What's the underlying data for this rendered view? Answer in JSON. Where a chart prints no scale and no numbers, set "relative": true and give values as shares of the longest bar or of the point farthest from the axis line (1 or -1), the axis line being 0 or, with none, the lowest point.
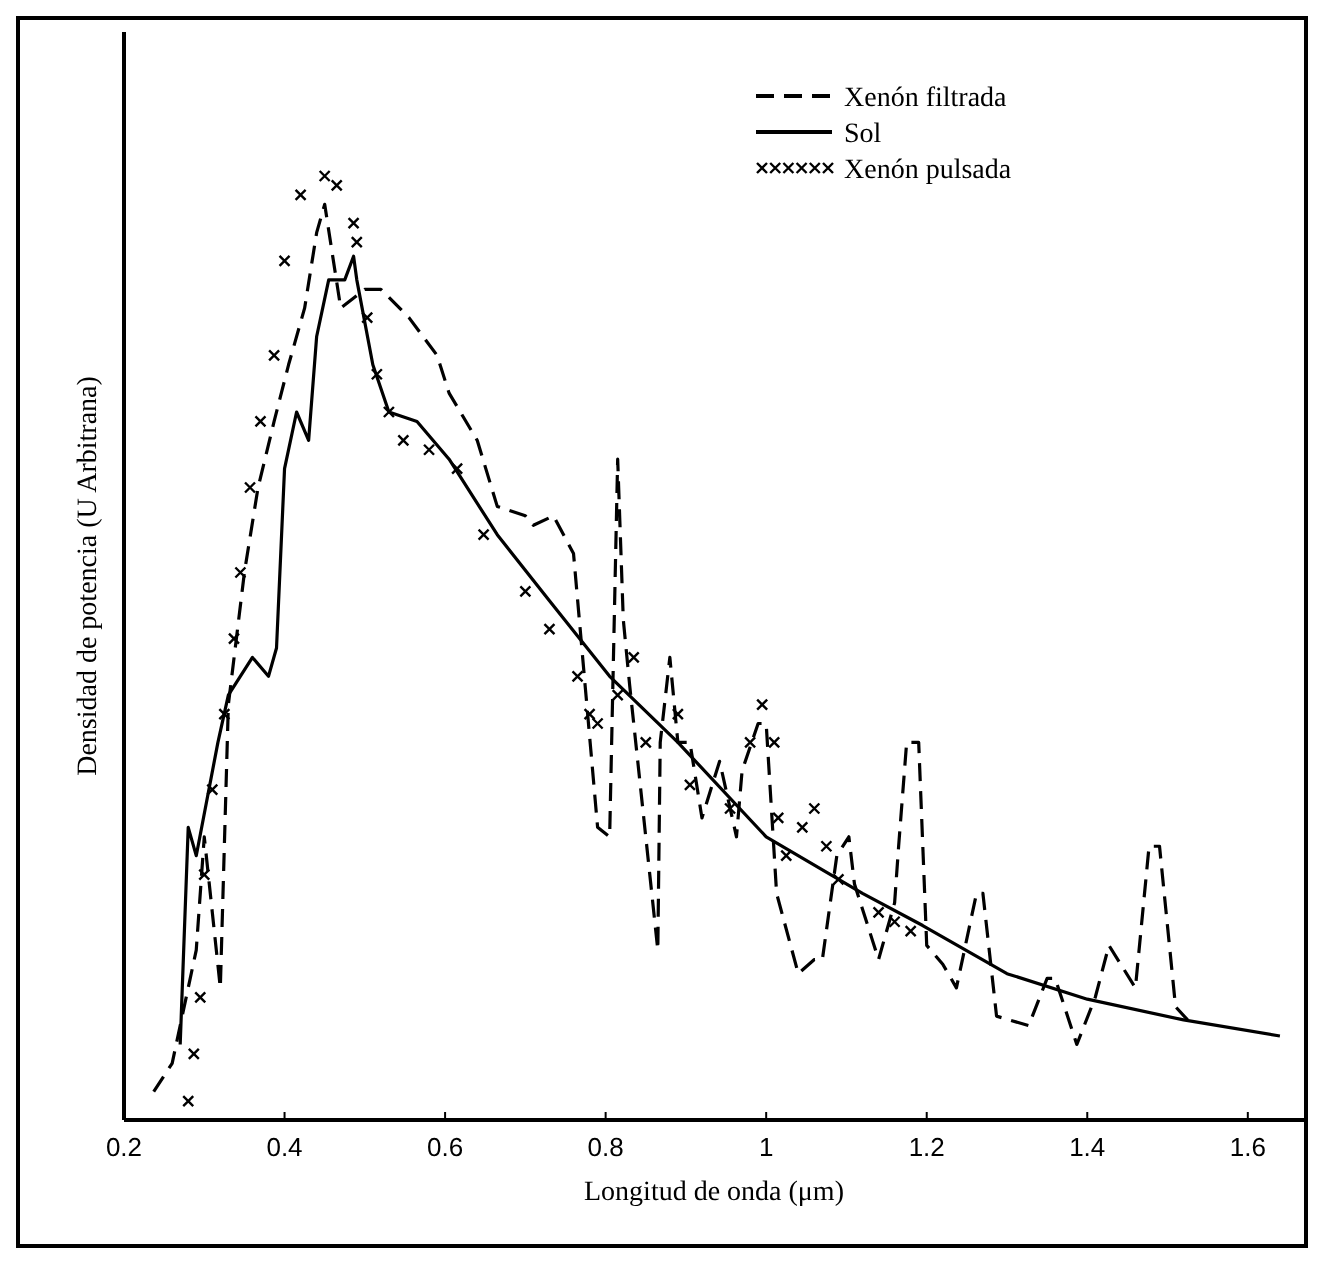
{
  "chart_data": {
    "type": "line",
    "relative": true,
    "xlabel": "Longitud de onda (μm)",
    "ylabel": "Densidad de potencia (U Arbitrana)",
    "xlim": [
      0.2,
      1.67
    ],
    "xticks": [
      0.2,
      0.4,
      0.6,
      0.8,
      1,
      1.2,
      1.4,
      1.6
    ],
    "legend": "top right",
    "grid": false,
    "series": [
      {
        "name": "Xenón filtrada",
        "color": "#000000",
        "line_style": "dashed",
        "x": [
          0.237,
          0.26,
          0.29,
          0.3,
          0.31,
          0.32,
          0.33,
          0.35,
          0.367,
          0.387,
          0.405,
          0.425,
          0.44,
          0.45,
          0.47,
          0.5,
          0.52,
          0.555,
          0.59,
          0.605,
          0.64,
          0.665,
          0.7,
          0.71,
          0.735,
          0.76,
          0.79,
          0.805,
          0.815,
          0.822,
          0.83,
          0.865,
          0.868,
          0.88,
          0.89,
          0.905,
          0.92,
          0.942,
          0.963,
          0.97,
          0.99,
          1.0,
          1.013,
          1.04,
          1.06,
          1.07,
          1.088,
          1.103,
          1.11,
          1.14,
          1.16,
          1.165,
          1.175,
          1.19,
          1.2,
          1.22,
          1.237,
          1.262,
          1.27,
          1.287,
          1.327,
          1.35,
          1.36,
          1.387,
          1.41,
          1.427,
          1.46,
          1.477,
          1.49,
          1.51,
          1.525
        ],
        "values": [
          0.03,
          0.06,
          0.18,
          0.3,
          0.22,
          0.14,
          0.44,
          0.58,
          0.67,
          0.74,
          0.8,
          0.86,
          0.94,
          0.97,
          0.86,
          0.88,
          0.88,
          0.85,
          0.81,
          0.77,
          0.72,
          0.65,
          0.64,
          0.63,
          0.64,
          0.6,
          0.31,
          0.3,
          0.7,
          0.53,
          0.46,
          0.18,
          0.4,
          0.49,
          0.4,
          0.4,
          0.32,
          0.38,
          0.3,
          0.37,
          0.42,
          0.42,
          0.24,
          0.155,
          0.17,
          0.17,
          0.28,
          0.3,
          0.25,
          0.17,
          0.23,
          0.29,
          0.4,
          0.4,
          0.185,
          0.165,
          0.14,
          0.24,
          0.24,
          0.11,
          0.1,
          0.15,
          0.15,
          0.08,
          0.13,
          0.185,
          0.14,
          0.29,
          0.29,
          0.12,
          0.106
        ]
      },
      {
        "name": "Sol",
        "color": "#000000",
        "line_style": "solid",
        "x": [
          0.27,
          0.28,
          0.29,
          0.317,
          0.33,
          0.36,
          0.38,
          0.39,
          0.4,
          0.415,
          0.43,
          0.44,
          0.455,
          0.475,
          0.486,
          0.49,
          0.51,
          0.53,
          0.565,
          0.605,
          0.665,
          0.73,
          0.805,
          0.89,
          1.0,
          1.12,
          1.195,
          1.3,
          1.4,
          1.52,
          1.64
        ],
        "values": [
          0.08,
          0.31,
          0.28,
          0.4,
          0.45,
          0.49,
          0.47,
          0.5,
          0.69,
          0.75,
          0.72,
          0.83,
          0.89,
          0.89,
          0.915,
          0.89,
          0.8,
          0.75,
          0.74,
          0.7,
          0.62,
          0.55,
          0.47,
          0.4,
          0.3,
          0.24,
          0.206,
          0.155,
          0.128,
          0.106,
          0.089
        ]
      },
      {
        "name": "Xenón pulsada",
        "type": "scatter",
        "marker": "cross",
        "color": "#000000",
        "x": [
          0.28,
          0.287,
          0.295,
          0.3,
          0.31,
          0.325,
          0.337,
          0.345,
          0.357,
          0.37,
          0.387,
          0.4,
          0.42,
          0.45,
          0.465,
          0.486,
          0.49,
          0.503,
          0.515,
          0.53,
          0.548,
          0.58,
          0.615,
          0.648,
          0.7,
          0.73,
          0.765,
          0.78,
          0.79,
          0.815,
          0.835,
          0.85,
          0.89,
          0.905,
          0.955,
          0.98,
          0.995,
          1.01,
          1.015,
          1.025,
          1.045,
          1.06,
          1.075,
          1.09,
          1.14,
          1.16,
          1.18
        ],
        "values": [
          0.02,
          0.07,
          0.13,
          0.26,
          0.35,
          0.43,
          0.51,
          0.58,
          0.67,
          0.74,
          0.81,
          0.91,
          0.98,
          1,
          0.99,
          0.95,
          0.93,
          0.85,
          0.79,
          0.75,
          0.72,
          0.71,
          0.69,
          0.62,
          0.56,
          0.52,
          0.47,
          0.43,
          0.42,
          0.45,
          0.49,
          0.4,
          0.43,
          0.355,
          0.33,
          0.4,
          0.44,
          0.4,
          0.32,
          0.28,
          0.31,
          0.33,
          0.29,
          0.255,
          0.22,
          0.21,
          0.2
        ]
      }
    ]
  }
}
